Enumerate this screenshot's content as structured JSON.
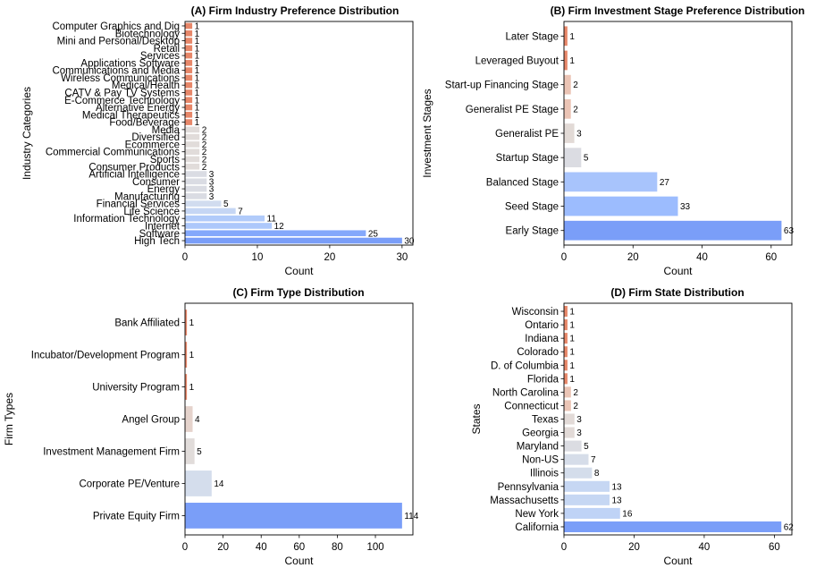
{
  "chart_data": [
    {
      "type": "bar",
      "orientation": "horizontal",
      "title": "(A) Firm Industry Preference Distribution",
      "xlabel": "Count",
      "ylabel": "Industry Categories",
      "xlim": [
        0,
        31.5
      ],
      "xticks": [
        0,
        10,
        20,
        30
      ],
      "categories": [
        "High Tech",
        "Software",
        "Internet",
        "Information Technology",
        "Life Science",
        "Financial Services",
        "Manufacturing",
        "Energy",
        "Consumer",
        "Artificial Intelligence",
        "Consumer Products",
        "Sports",
        "Commercial Communications",
        "Ecommerce",
        "Diversified",
        "Media",
        "Food/Beverage",
        "Medical Therapeutics",
        "Alternative Energy",
        "E-Commerce Technology",
        "CATV & Pay TV Systems",
        "Medical/Health",
        "Wireless Communications",
        "Communications and Media",
        "Applications Software",
        "Services",
        "Retail",
        "Mini and Personal/Desktop",
        "Biotechnology",
        "Computer Graphics and Dig"
      ],
      "values": [
        30,
        25,
        12,
        11,
        7,
        5,
        3,
        3,
        3,
        3,
        2,
        2,
        2,
        2,
        2,
        2,
        1,
        1,
        1,
        1,
        1,
        1,
        1,
        1,
        1,
        1,
        1,
        1,
        1,
        1
      ]
    },
    {
      "type": "bar",
      "orientation": "horizontal",
      "title": "(B) Firm Investment Stage Preference Distribution",
      "xlabel": "Count",
      "ylabel": "Investment Stages",
      "xlim": [
        0,
        66
      ],
      "xticks": [
        0,
        20,
        40,
        60
      ],
      "categories": [
        "Early Stage",
        "Seed Stage",
        "Balanced Stage",
        "Startup Stage",
        "Generalist PE",
        "Generalist PE Stage",
        "Start-up Financing Stage",
        "Leveraged Buyout",
        "Later Stage"
      ],
      "values": [
        63,
        33,
        27,
        5,
        3,
        2,
        2,
        1,
        1
      ]
    },
    {
      "type": "bar",
      "orientation": "horizontal",
      "title": "(C) Firm Type Distribution",
      "xlabel": "Count",
      "ylabel": "Firm Types",
      "xlim": [
        0,
        119.7
      ],
      "xticks": [
        0,
        20,
        40,
        60,
        80,
        100
      ],
      "categories": [
        "Private Equity Firm",
        "Corporate PE/Venture",
        "Investment Management Firm",
        "Angel Group",
        "University Program",
        "Incubator/Development Program",
        "Bank Affiliated"
      ],
      "values": [
        114,
        14,
        5,
        4,
        1,
        1,
        1
      ]
    },
    {
      "type": "bar",
      "orientation": "horizontal",
      "title": "(D) Firm State Distribution",
      "xlabel": "Count",
      "ylabel": "States",
      "xlim": [
        0,
        65
      ],
      "xticks": [
        0,
        20,
        40,
        60
      ],
      "categories": [
        "California",
        "New York",
        "Massachusetts",
        "Pennsylvania",
        "Illinois",
        "Non-US",
        "Maryland",
        "Georgia",
        "Texas",
        "Connecticut",
        "North Carolina",
        "Florida",
        "D. of Columbia",
        "Colorado",
        "Indiana",
        "Ontario",
        "Wisconsin"
      ],
      "values": [
        62,
        16,
        13,
        13,
        8,
        7,
        5,
        3,
        3,
        2,
        2,
        1,
        1,
        1,
        1,
        1,
        1
      ]
    }
  ]
}
